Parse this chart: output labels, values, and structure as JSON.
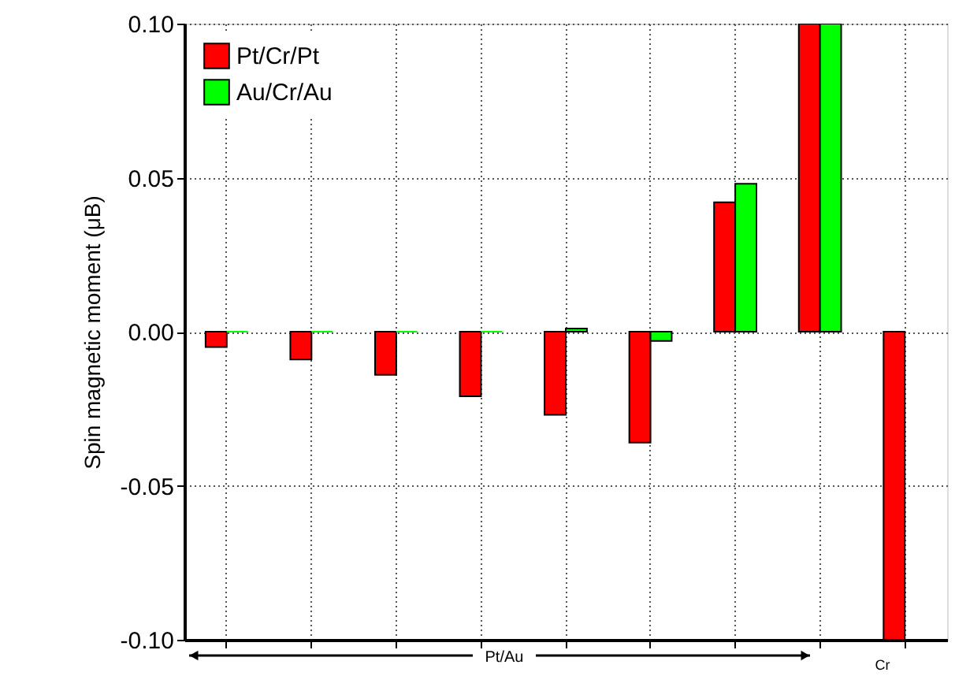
{
  "chart_data": {
    "type": "bar",
    "ylabel": "Spin magnetic moment (μB)",
    "categories": [
      null,
      null,
      null,
      null,
      null,
      null,
      null,
      null,
      null
    ],
    "series": [
      {
        "name": "Pt/Cr/Pt",
        "color": "#ff0000",
        "values": [
          -0.005,
          -0.009,
          -0.014,
          -0.021,
          -0.027,
          -0.036,
          0.042,
          0.1,
          -0.1
        ]
      },
      {
        "name": "Au/Cr/Au",
        "color": "#00ff00",
        "values": [
          0.0,
          0.0,
          0.0,
          0.0,
          0.001,
          -0.003,
          0.048,
          0.1,
          null
        ]
      }
    ],
    "ylim": [
      -0.1,
      0.1
    ],
    "yticks": [
      {
        "value": -0.1,
        "label": "-0.10"
      },
      {
        "value": -0.05,
        "label": "-0.05"
      },
      {
        "value": 0,
        "label": "0.00"
      },
      {
        "value": 0.05,
        "label": "0.05"
      },
      {
        "value": 0.1,
        "label": "0.10"
      }
    ],
    "annotations": [
      "Pt/Au",
      "Cr"
    ],
    "grid": true,
    "legend": "top left",
    "tick_labels": "y"
  }
}
